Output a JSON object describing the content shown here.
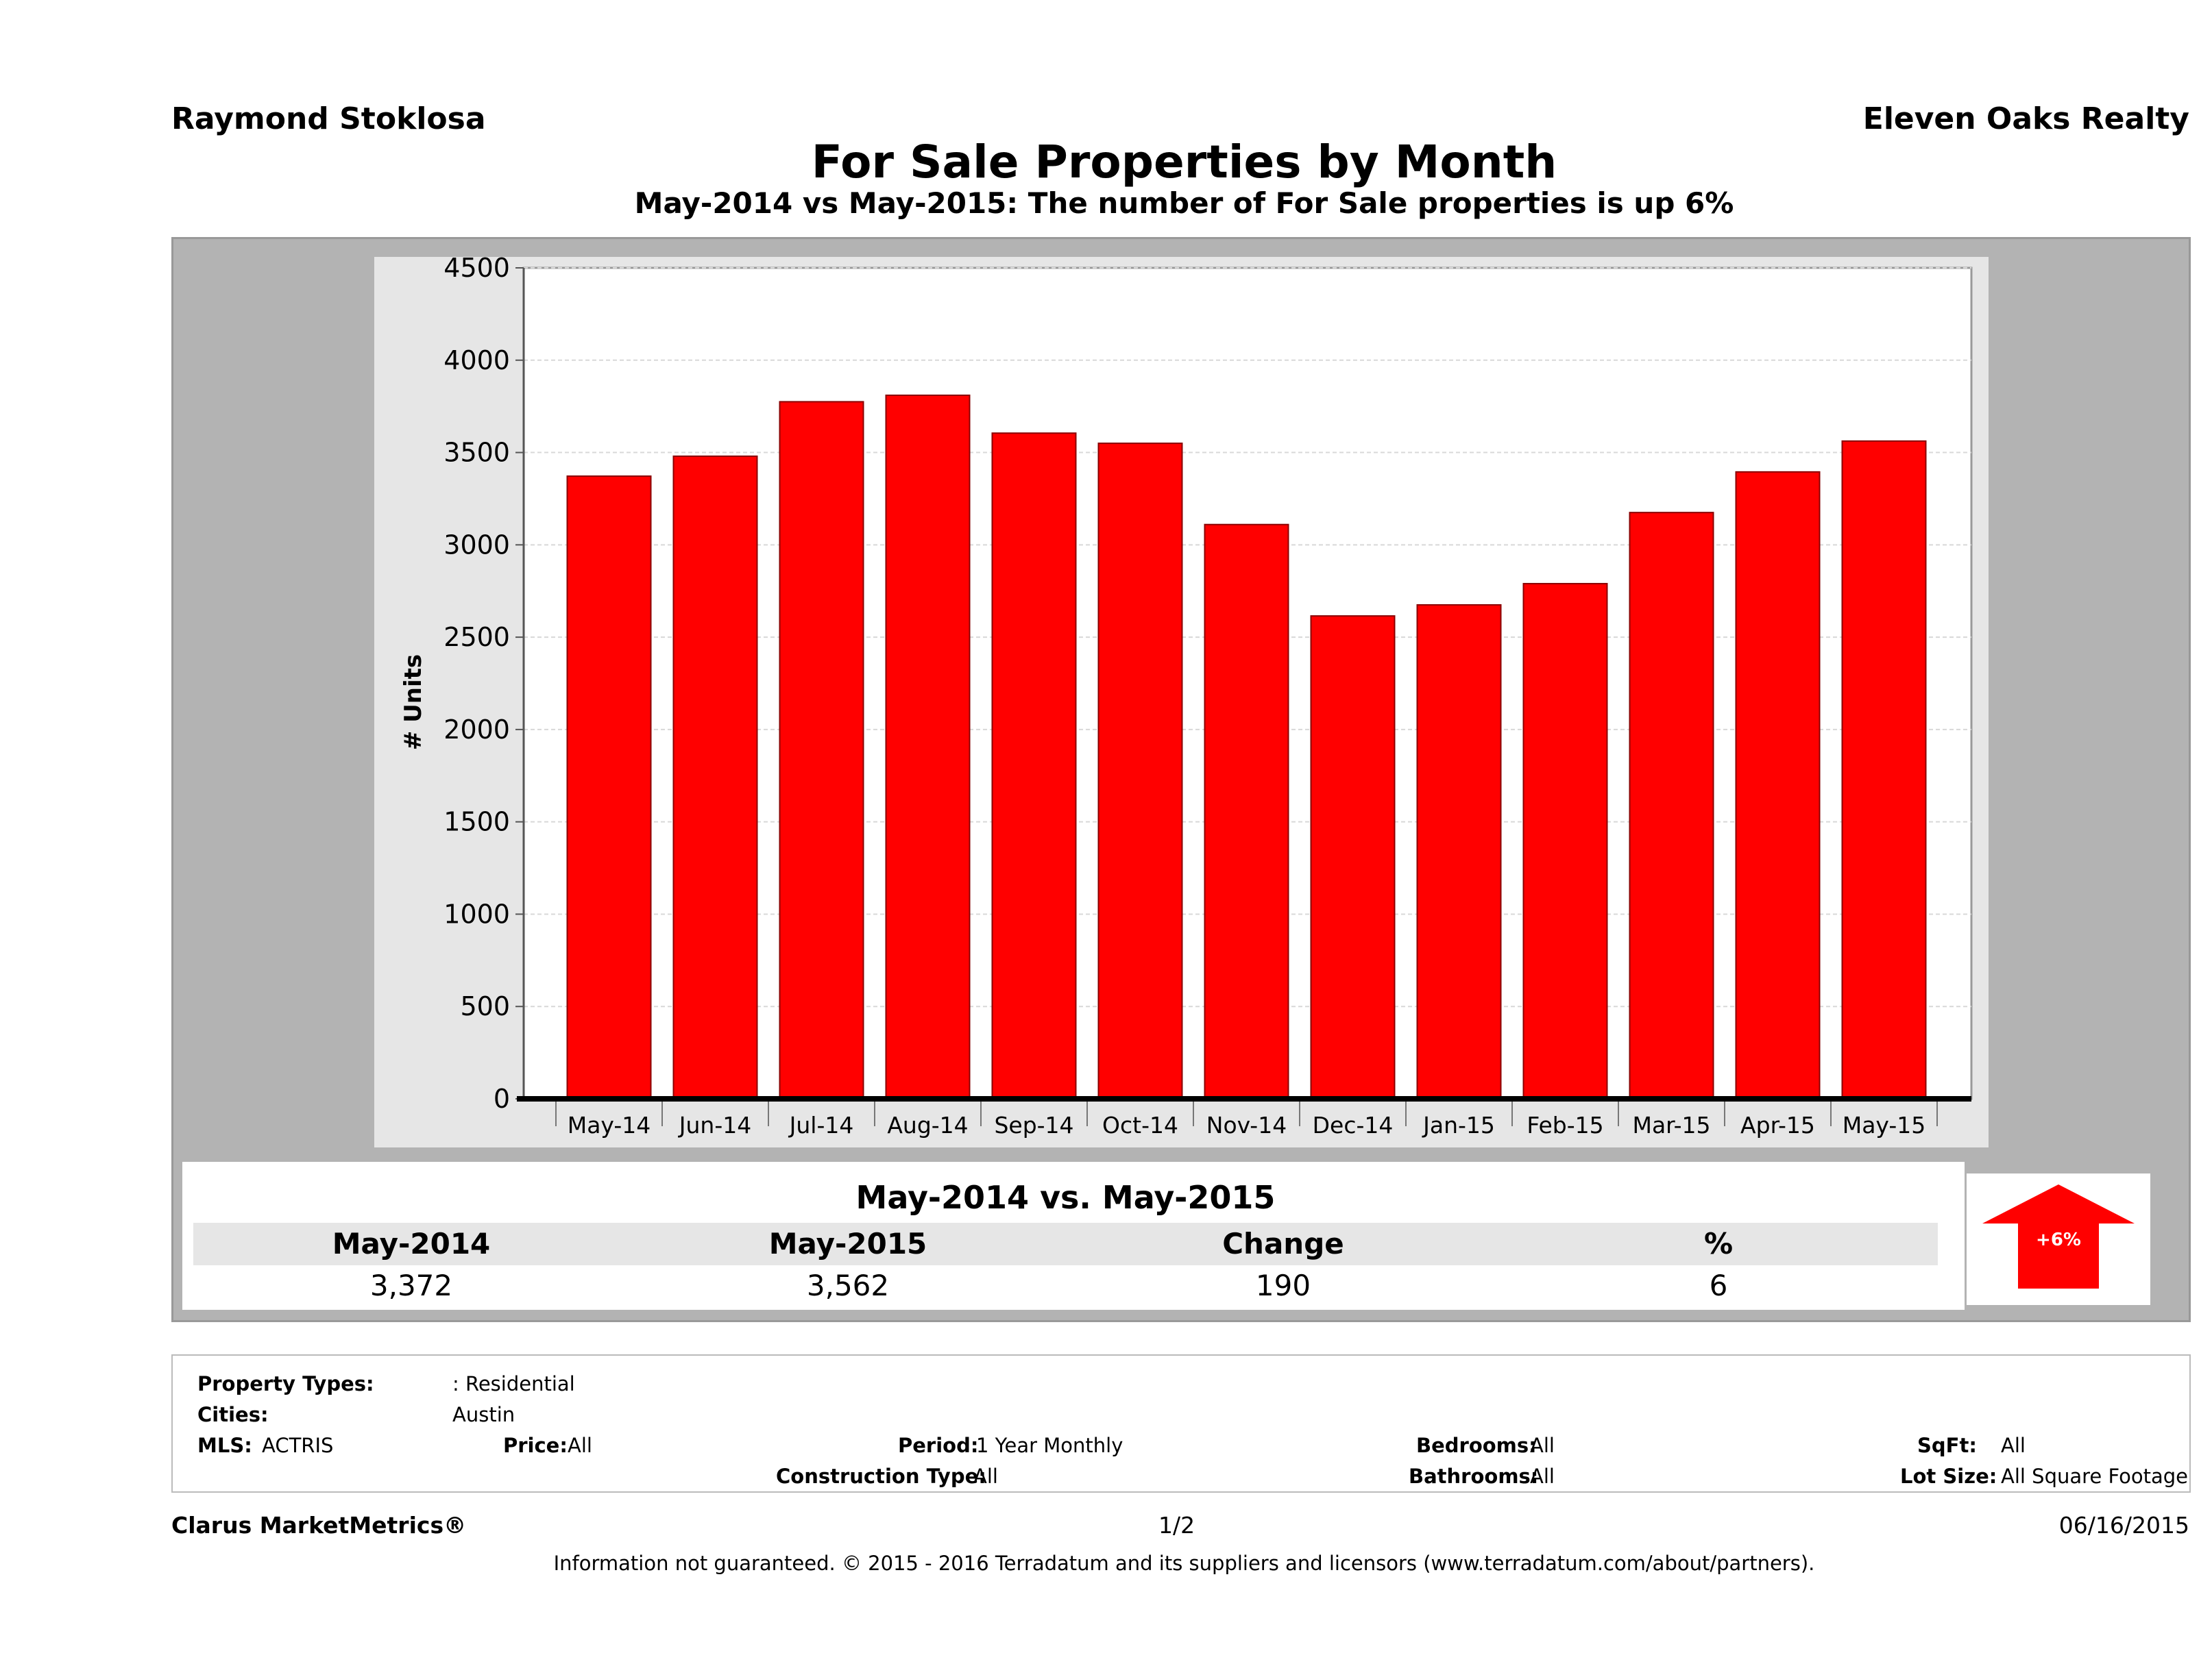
{
  "header": {
    "agent": "Raymond Stoklosa",
    "company": "Eleven Oaks Realty",
    "title": "For Sale Properties by Month",
    "subtitle": "May-2014 vs May-2015: The number of For Sale  properties is up 6%"
  },
  "chart_data": {
    "type": "bar",
    "categories": [
      "May-14",
      "Jun-14",
      "Jul-14",
      "Aug-14",
      "Sep-14",
      "Oct-14",
      "Nov-14",
      "Dec-14",
      "Jan-15",
      "Feb-15",
      "Mar-15",
      "Apr-15",
      "May-15"
    ],
    "values": [
      3372,
      3480,
      3775,
      3810,
      3605,
      3550,
      3110,
      2615,
      2675,
      2790,
      3175,
      3395,
      3562
    ],
    "ylabel": "# Units",
    "xlabel": "",
    "ylim": [
      0,
      4500
    ],
    "yticks": [
      0,
      500,
      1000,
      1500,
      2000,
      2500,
      3000,
      3500,
      4000,
      4500
    ],
    "bar_color": "#ff0000",
    "grid": true
  },
  "summary": {
    "heading": "May-2014 vs. May-2015",
    "col1_label": "May-2014",
    "col2_label": "May-2015",
    "col3_label": "Change",
    "col4_label": "%",
    "col1_value": "3,372",
    "col2_value": "3,562",
    "col3_value": "190",
    "col4_value": "6",
    "arrow_label": "+6%",
    "arrow_color": "#ff0000"
  },
  "criteria": {
    "property_types_label": "Property Types:",
    "property_types_value": ": Residential",
    "cities_label": "Cities:",
    "cities_value": "Austin",
    "mls_label": "MLS:",
    "mls_value": "ACTRIS",
    "price_label": "Price:",
    "price_value": "All",
    "period_label": "Period:",
    "period_value": "1 Year Monthly",
    "construction_label": "Construction Type:",
    "construction_value": "All",
    "bedrooms_label": "Bedrooms:",
    "bedrooms_value": "All",
    "bathrooms_label": "Bathrooms:",
    "bathrooms_value": "All",
    "sqft_label": "SqFt:",
    "sqft_value": "All",
    "lotsize_label": "Lot Size:",
    "lotsize_value": "All Square Footage"
  },
  "footer": {
    "brand": "Clarus MarketMetrics®",
    "page": "1/2",
    "date": "06/16/2015",
    "disclaimer": "Information not guaranteed. © 2015 - 2016 Terradatum and its suppliers and licensors (www.terradatum.com/about/partners)."
  }
}
